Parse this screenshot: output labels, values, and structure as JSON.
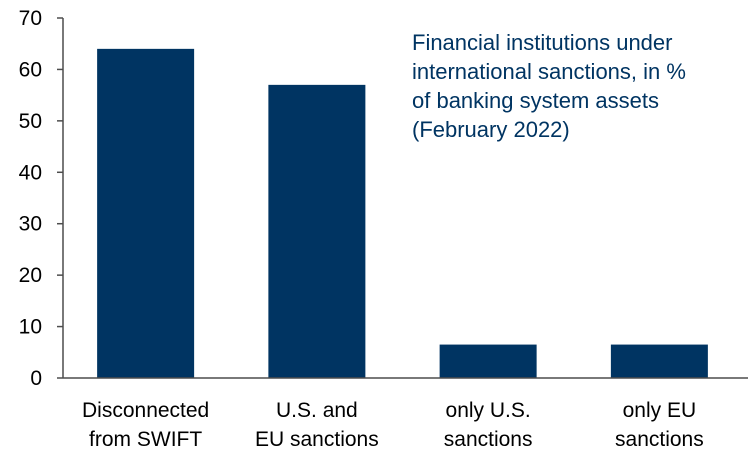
{
  "colors": {
    "bar": "#003462",
    "axis": "#4d4d4d",
    "text": "#000000",
    "note": "#003462"
  },
  "chart_data": {
    "type": "bar",
    "title": "",
    "xlabel": "",
    "ylabel": "",
    "ylim": [
      0,
      70
    ],
    "yticks": [
      0,
      10,
      20,
      30,
      40,
      50,
      60,
      70
    ],
    "grid": false,
    "categories": [
      [
        "Disconnected",
        "from SWIFT"
      ],
      [
        "U.S. and",
        "EU sanctions"
      ],
      [
        "only U.S.",
        "sanctions"
      ],
      [
        "only EU",
        "sanctions"
      ]
    ],
    "values": [
      64,
      57,
      6.5,
      6.5
    ],
    "annotation": [
      "Financial institutions under",
      "international sanctions, in %",
      "of banking system assets",
      "(February 2022)"
    ]
  }
}
